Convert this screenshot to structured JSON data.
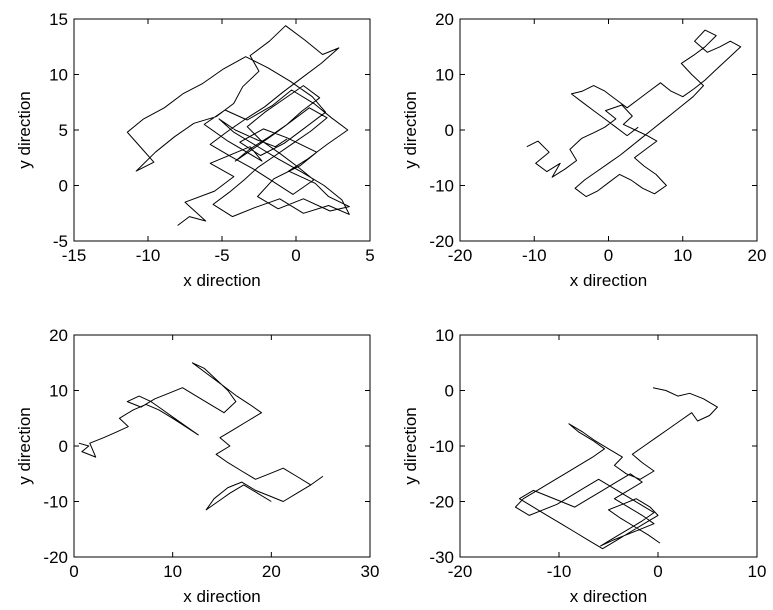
{
  "chart_data": [
    {
      "type": "line",
      "title": "",
      "xlabel": "x direction",
      "ylabel": "y direction",
      "xlim": [
        -15,
        5
      ],
      "ylim": [
        -5,
        15
      ],
      "xticks": [
        "-15",
        "-10",
        "-5",
        "0",
        "5"
      ],
      "yticks": [
        "-5",
        "0",
        "5",
        "10",
        "15"
      ],
      "grid": false,
      "series": [
        {
          "color": "#000000",
          "x": [
            -8,
            -7.2,
            -6.1,
            -7.5,
            -5.5,
            -4.2,
            -5.8,
            -3.1,
            -2.3,
            -4.6,
            -6.2,
            -4.8,
            -3.3,
            -1.6,
            -0.3,
            1.2,
            2.4,
            3.5,
            2.1,
            0.8,
            -0.5,
            1.3,
            2.2,
            3.6,
            2.3,
            0.5,
            -1.2,
            -2.6,
            -1.5,
            0.3,
            1.4,
            -0.6,
            -2.2,
            -3.8,
            -2.4,
            -0.8,
            0.6,
            2.0,
            1.1,
            -0.4,
            -1.9,
            -3.4,
            -4.9,
            -6.3,
            -7.6,
            -8.9,
            -10.3,
            -11.4,
            -10.6,
            -9.6,
            -10.8,
            -9.5,
            -8.2,
            -6.9,
            -5.4,
            -4.2,
            -3.6,
            -2.5,
            -3.1,
            -1.8,
            -0.7,
            0.6,
            1.8,
            2.9,
            1.7,
            0.4,
            -0.9,
            -2.1,
            -3.4,
            -4.6,
            -5.8,
            -4.4,
            -2.9,
            -1.6,
            -0.2,
            1.2,
            0.1,
            -1.1,
            -2.4,
            -3.3,
            -2.1,
            -0.8,
            0.5,
            1.6,
            0.4,
            -0.6,
            -1.8,
            -3.1,
            -4.1,
            -2.8,
            -1.5,
            -0.3,
            0.9,
            2.1,
            1.0,
            -0.2,
            -1.4,
            -2.6,
            -3.5,
            -4.5,
            -5.6,
            -4.3,
            -2.8,
            -1.1,
            0.5,
            2.2,
            3.6,
            3.1,
            1.9,
            0.4,
            -1.2,
            -2.7,
            -4.2,
            -5.2,
            -4.1,
            -2.6,
            -1.4,
            -0.6
          ],
          "y": [
            -3.6,
            -2.8,
            -3.2,
            -1.5,
            -0.5,
            0.8,
            2.0,
            3.5,
            2.2,
            4.0,
            5.5,
            6.8,
            5.9,
            7.2,
            8.6,
            7.4,
            6.1,
            5.0,
            3.7,
            2.4,
            1.3,
            0.2,
            -1.0,
            -1.9,
            -2.3,
            -1.2,
            -2.1,
            -1.0,
            0.6,
            1.8,
            3.0,
            4.3,
            5.1,
            3.9,
            2.7,
            3.8,
            5.2,
            6.6,
            8.0,
            9.4,
            10.6,
            11.6,
            10.5,
            9.2,
            8.3,
            7.0,
            6.0,
            4.8,
            3.6,
            2.1,
            1.3,
            3.0,
            4.4,
            5.6,
            6.2,
            7.4,
            8.9,
            10.3,
            11.7,
            13.0,
            14.4,
            13.1,
            11.8,
            12.4,
            11.0,
            9.7,
            8.4,
            7.1,
            6.0,
            4.9,
            3.7,
            2.6,
            1.5,
            0.4,
            -0.8,
            0.5,
            1.7,
            2.9,
            4.1,
            5.3,
            6.6,
            7.8,
            9.0,
            7.9,
            6.7,
            5.5,
            4.4,
            3.3,
            2.2,
            3.4,
            4.6,
            5.8,
            7.0,
            6.1,
            4.9,
            3.8,
            2.7,
            1.6,
            0.5,
            -0.6,
            -1.7,
            -2.8,
            -2.0,
            -1.2,
            -2.5,
            -1.8,
            -2.6,
            -1.3,
            0.0,
            1.2,
            2.4,
            3.6,
            4.8,
            6.0,
            5.0,
            4.1,
            3.5,
            4.2
          ]
        }
      ]
    },
    {
      "type": "line",
      "title": "",
      "xlabel": "x direction",
      "ylabel": "y direction",
      "xlim": [
        -20,
        20
      ],
      "ylim": [
        -20,
        20
      ],
      "xticks": [
        "-20",
        "-10",
        "0",
        "10",
        "20"
      ],
      "yticks": [
        "-20",
        "-10",
        "0",
        "10",
        "20"
      ],
      "grid": false,
      "series": [
        {
          "color": "#000000",
          "x": [
            -11.0,
            -9.5,
            -8.0,
            -9.8,
            -8.3,
            -6.5,
            -7.6,
            -5.8,
            -4.3,
            -5.2,
            -3.6,
            -2.0,
            -0.5,
            1.0,
            -0.4,
            1.8,
            3.2,
            2.0,
            3.6,
            5.2,
            6.5,
            5.0,
            3.5,
            4.8,
            6.4,
            7.8,
            6.2,
            4.6,
            3.0,
            1.5,
            0.0,
            -1.5,
            -3.0,
            -4.5,
            -3.2,
            -1.6,
            0.0,
            1.6,
            3.0,
            4.4,
            5.8,
            7.2,
            8.6,
            10.0,
            11.4,
            12.8,
            11.2,
            9.8,
            11.5,
            13.0,
            14.5,
            13.0,
            11.6,
            13.3,
            15.0,
            16.4,
            17.8,
            16.2,
            14.6,
            13.0,
            11.6,
            10.0,
            8.4,
            7.0,
            5.5,
            4.0,
            2.5,
            1.0,
            -0.5,
            -2.0,
            -3.5,
            -5.0,
            -3.5,
            -2.0,
            -0.5,
            1.0,
            2.5,
            4.0
          ],
          "y": [
            -3.0,
            -2.0,
            -4.0,
            -6.0,
            -7.5,
            -6.0,
            -8.5,
            -7.0,
            -5.5,
            -3.5,
            -1.5,
            -0.5,
            0.5,
            2.0,
            3.5,
            4.5,
            2.5,
            1.0,
            0.0,
            -1.0,
            -2.0,
            -3.5,
            -5.0,
            -6.5,
            -8.0,
            -10.0,
            -11.5,
            -10.5,
            -9.0,
            -8.0,
            -9.5,
            -11.0,
            -12.0,
            -10.5,
            -9.0,
            -7.5,
            -6.0,
            -4.5,
            -3.0,
            -1.5,
            0.0,
            1.5,
            3.0,
            4.5,
            6.0,
            8.0,
            10.0,
            12.0,
            13.5,
            15.0,
            17.0,
            18.0,
            16.0,
            14.0,
            15.0,
            16.0,
            15.0,
            13.0,
            11.0,
            9.0,
            7.5,
            6.0,
            7.0,
            8.5,
            7.0,
            5.5,
            4.0,
            5.5,
            7.0,
            8.0,
            7.0,
            6.5,
            5.0,
            3.5,
            2.0,
            0.5,
            -1.0,
            0.5
          ]
        }
      ]
    },
    {
      "type": "line",
      "title": "",
      "xlabel": "x direction",
      "ylabel": "y direction",
      "xlim": [
        0,
        30
      ],
      "ylim": [
        -20,
        20
      ],
      "xticks": [
        "0",
        "10",
        "20",
        "30"
      ],
      "yticks": [
        "-20",
        "-10",
        "0",
        "10",
        "20"
      ],
      "grid": false,
      "series": [
        {
          "color": "#000000",
          "x": [
            0.5,
            1.5,
            0.8,
            2.2,
            1.6,
            3.0,
            4.3,
            5.5,
            4.6,
            6.0,
            7.3,
            8.6,
            10.0,
            11.3,
            12.6,
            11.4,
            10.2,
            9.0,
            7.8,
            6.6,
            5.4,
            6.8,
            8.2,
            9.6,
            11.0,
            12.4,
            13.8,
            15.2,
            16.4,
            15.6,
            14.4,
            13.2,
            12.0,
            13.5,
            15.0,
            16.5,
            17.8,
            19.0,
            17.6,
            16.2,
            14.8,
            15.8,
            14.4,
            15.6,
            17.0,
            18.4,
            19.8,
            21.2,
            22.6,
            24.0,
            25.2,
            24.0,
            22.6,
            21.2,
            19.8,
            18.4,
            17.0,
            15.6,
            14.2,
            13.4,
            14.6,
            15.8,
            17.2,
            18.6,
            20.0
          ],
          "y": [
            0.5,
            0.0,
            -1.0,
            -2.0,
            0.5,
            1.5,
            2.5,
            3.5,
            5.0,
            6.5,
            7.5,
            6.5,
            5.0,
            3.5,
            2.0,
            3.5,
            5.0,
            6.5,
            8.0,
            9.0,
            8.0,
            7.0,
            8.5,
            9.5,
            10.5,
            9.0,
            7.5,
            6.0,
            8.0,
            10.0,
            12.0,
            14.0,
            15.0,
            13.0,
            11.0,
            9.0,
            7.5,
            6.0,
            4.5,
            3.0,
            1.5,
            0.0,
            -1.5,
            -3.0,
            -4.5,
            -6.0,
            -5.0,
            -4.0,
            -5.5,
            -7.0,
            -5.5,
            -7.0,
            -8.5,
            -10.0,
            -9.0,
            -8.0,
            -6.5,
            -7.5,
            -9.5,
            -11.5,
            -10.0,
            -8.5,
            -7.0,
            -8.5,
            -10.0
          ]
        }
      ]
    },
    {
      "type": "line",
      "title": "",
      "xlabel": "x direction",
      "ylabel": "y direction",
      "xlim": [
        -20,
        10
      ],
      "ylim": [
        -30,
        10
      ],
      "xticks": [
        "-20",
        "-10",
        "0",
        "10"
      ],
      "yticks": [
        "-30",
        "-20",
        "-10",
        "0",
        "10"
      ],
      "grid": false,
      "series": [
        {
          "color": "#000000",
          "x": [
            -0.5,
            0.8,
            2.0,
            3.2,
            4.6,
            6.0,
            5.2,
            4.0,
            3.4,
            2.2,
            1.0,
            -0.2,
            -1.4,
            -2.6,
            -1.6,
            -0.4,
            -1.8,
            -3.2,
            -4.4,
            -3.6,
            -5.0,
            -6.4,
            -7.6,
            -9.0,
            -8.0,
            -6.6,
            -5.4,
            -6.6,
            -8.0,
            -9.4,
            -10.8,
            -12.2,
            -13.6,
            -14.4,
            -13.0,
            -11.6,
            -10.2,
            -8.8,
            -7.4,
            -6.0,
            -4.6,
            -3.2,
            -1.8,
            -0.4,
            -1.6,
            -3.0,
            -4.4,
            -5.8,
            -4.6,
            -3.2,
            -1.8,
            -0.4,
            -1.6,
            -3.0,
            -4.4,
            -3.0,
            -1.6,
            -2.8,
            -4.2,
            -5.6,
            -7.0,
            -8.4,
            -9.8,
            -11.2,
            -12.6,
            -14.0,
            -12.6,
            -11.2,
            -9.8,
            -8.4,
            -7.0,
            -5.6,
            -4.2,
            -2.8,
            -1.4,
            0.0,
            -0.8,
            -2.2,
            -3.6,
            -5.0,
            -3.8,
            -2.4,
            -1.0,
            0.2
          ],
          "y": [
            0.5,
            0.0,
            -1.0,
            -0.5,
            -1.5,
            -3.0,
            -4.5,
            -5.5,
            -4.0,
            -5.5,
            -7.0,
            -8.5,
            -10.0,
            -11.5,
            -13.0,
            -14.5,
            -16.0,
            -15.0,
            -13.5,
            -12.0,
            -10.5,
            -9.0,
            -7.5,
            -6.0,
            -7.5,
            -9.0,
            -10.5,
            -12.0,
            -13.5,
            -15.0,
            -16.5,
            -18.0,
            -19.5,
            -21.0,
            -22.5,
            -21.5,
            -20.5,
            -19.0,
            -17.5,
            -16.0,
            -17.5,
            -19.0,
            -20.5,
            -22.0,
            -23.5,
            -25.0,
            -26.5,
            -28.0,
            -27.0,
            -26.0,
            -25.0,
            -24.0,
            -22.5,
            -21.0,
            -19.5,
            -18.0,
            -16.5,
            -15.0,
            -16.5,
            -18.0,
            -19.5,
            -21.0,
            -20.0,
            -19.0,
            -18.0,
            -19.5,
            -21.0,
            -22.5,
            -24.0,
            -25.5,
            -27.0,
            -28.5,
            -27.0,
            -25.5,
            -24.0,
            -22.5,
            -21.0,
            -19.5,
            -20.5,
            -21.5,
            -23.0,
            -24.5,
            -26.0,
            -27.5
          ]
        }
      ]
    }
  ]
}
